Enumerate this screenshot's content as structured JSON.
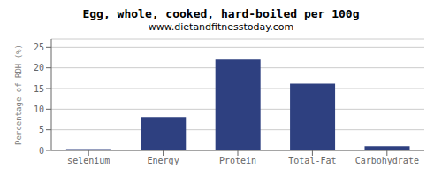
{
  "chart_data": {
    "type": "bar",
    "title": "Egg, whole, cooked, hard-boiled per 100g",
    "subtitle": "www.dietandfitnesstoday.com",
    "ylabel": "Percentage of RDH (%)",
    "categories": [
      "selenium",
      "Energy",
      "Protein",
      "Total-Fat",
      "Carbohydrate"
    ],
    "values": [
      0.3,
      8.1,
      22.0,
      16.2,
      1.0
    ],
    "color": "#2e4080",
    "ylim": [
      0,
      27
    ],
    "yticks": [
      0,
      5,
      10,
      15,
      20,
      25
    ],
    "grid": true
  }
}
